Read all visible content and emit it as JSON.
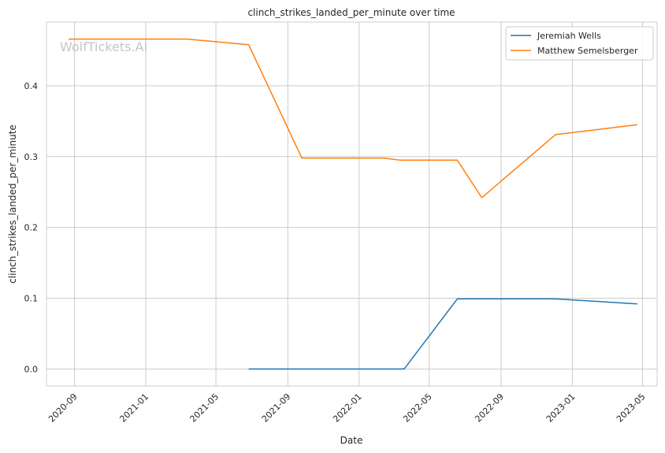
{
  "chart_data": {
    "type": "line",
    "title": "clinch_strikes_landed_per_minute over time",
    "xlabel": "Date",
    "ylabel": "clinch_strikes_landed_per_minute",
    "watermark": "WolfTickets.AI",
    "xlim": [
      "2020-07-15",
      "2023-05-26"
    ],
    "ylim": [
      -0.024,
      0.49
    ],
    "x_ticks": [
      "2020-09",
      "2021-01",
      "2021-05",
      "2021-09",
      "2022-01",
      "2022-05",
      "2022-09",
      "2023-01",
      "2023-05"
    ],
    "y_ticks": [
      "0.0",
      "0.1",
      "0.2",
      "0.3",
      "0.4"
    ],
    "grid": true,
    "legend_position": "top-right",
    "series": [
      {
        "name": "Jeremiah Wells",
        "color": "#1f77b4",
        "points": [
          {
            "x": "2021-06-26",
            "y": 0.0
          },
          {
            "x": "2022-03-19",
            "y": 0.0
          },
          {
            "x": "2022-06-18",
            "y": 0.099
          },
          {
            "x": "2022-12-03",
            "y": 0.099
          },
          {
            "x": "2023-04-22",
            "y": 0.092
          }
        ]
      },
      {
        "name": "Matthew Semelsberger",
        "color": "#ff7f0e",
        "points": [
          {
            "x": "2020-08-22",
            "y": 0.466
          },
          {
            "x": "2021-03-13",
            "y": 0.466
          },
          {
            "x": "2021-06-26",
            "y": 0.458
          },
          {
            "x": "2021-09-25",
            "y": 0.298
          },
          {
            "x": "2022-02-12",
            "y": 0.298
          },
          {
            "x": "2022-03-12",
            "y": 0.295
          },
          {
            "x": "2022-06-18",
            "y": 0.295
          },
          {
            "x": "2022-07-30",
            "y": 0.242
          },
          {
            "x": "2022-12-03",
            "y": 0.331
          },
          {
            "x": "2023-04-22",
            "y": 0.345
          }
        ]
      }
    ]
  }
}
